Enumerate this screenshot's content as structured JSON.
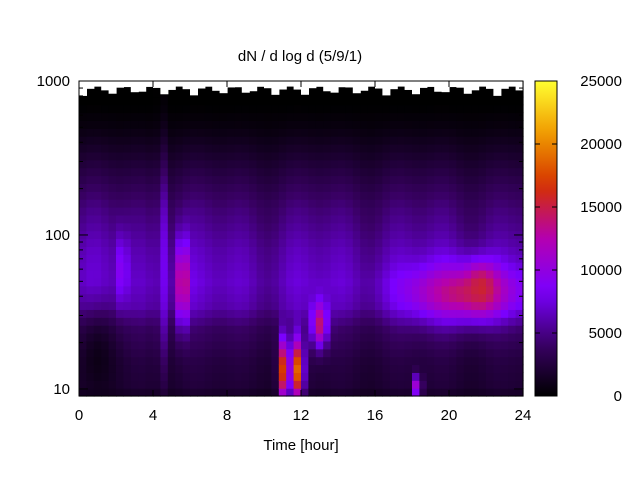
{
  "chart_data": {
    "type": "heatmap",
    "title": "dN / d log d (5/9/1)",
    "xlabel": "Time [hour]",
    "ylabel": "",
    "x_ticks": [
      "0",
      "4",
      "8",
      "12",
      "16",
      "20",
      "24"
    ],
    "x_tick_values": [
      0,
      4,
      8,
      12,
      16,
      20,
      24
    ],
    "xlim": [
      0,
      24
    ],
    "y_scale": "log",
    "y_ticks": [
      "10",
      "100",
      "1000"
    ],
    "y_tick_values": [
      10,
      100,
      1000
    ],
    "ylim": [
      9,
      1000
    ],
    "colorbar": {
      "ticks": [
        "0",
        "5000",
        "10000",
        "15000",
        "20000",
        "25000"
      ],
      "tick_values": [
        0,
        5000,
        10000,
        15000,
        20000,
        25000
      ],
      "range": [
        0,
        25000
      ],
      "palette": [
        "#000000",
        "#3a0066",
        "#7a00ff",
        "#b400b0",
        "#d43000",
        "#f09a00",
        "#ffff30"
      ]
    },
    "baseline_profile": [
      {
        "d": 9,
        "value": 1500
      },
      {
        "d": 10,
        "value": 2500
      },
      {
        "d": 15,
        "value": 3000
      },
      {
        "d": 25,
        "value": 4500
      },
      {
        "d": 35,
        "value": 7000
      },
      {
        "d": 50,
        "value": 7800
      },
      {
        "d": 80,
        "value": 7000
      },
      {
        "d": 150,
        "value": 5200
      },
      {
        "d": 300,
        "value": 2500
      },
      {
        "d": 500,
        "value": 700
      },
      {
        "d": 700,
        "value": 0
      },
      {
        "d": 1000,
        "value": 0
      }
    ],
    "features": [
      {
        "t_start": 0,
        "t_end": 2,
        "d_low": 9,
        "d_high": 30,
        "value": 800
      },
      {
        "t_start": 2.1,
        "t_end": 2.6,
        "d_low": 40,
        "d_high": 90,
        "value": 10000
      },
      {
        "t_start": 4.3,
        "t_end": 4.7,
        "d_low": 20,
        "d_high": 200,
        "value": 8500
      },
      {
        "t_start": 5.3,
        "t_end": 5.9,
        "d_low": 30,
        "d_high": 80,
        "value": 15500
      },
      {
        "t_start": 10.8,
        "t_end": 11.2,
        "d_low": 9,
        "d_high": 20,
        "value": 17000
      },
      {
        "t_start": 11.4,
        "t_end": 12.1,
        "d_low": 9,
        "d_high": 20,
        "value": 19000
      },
      {
        "t_start": 12.6,
        "t_end": 13.4,
        "d_low": 20,
        "d_high": 35,
        "value": 14000
      },
      {
        "t_start": 18.1,
        "t_end": 18.5,
        "d_low": 9,
        "d_high": 12,
        "value": 13000
      },
      {
        "t_start": 18,
        "t_end": 23.5,
        "d_low": 30,
        "d_high": 60,
        "value": 14000
      },
      {
        "t_start": 21,
        "t_end": 22.5,
        "d_low": 35,
        "d_high": 60,
        "value": 15500
      }
    ],
    "grid": false,
    "legend": "colorbar-right"
  }
}
